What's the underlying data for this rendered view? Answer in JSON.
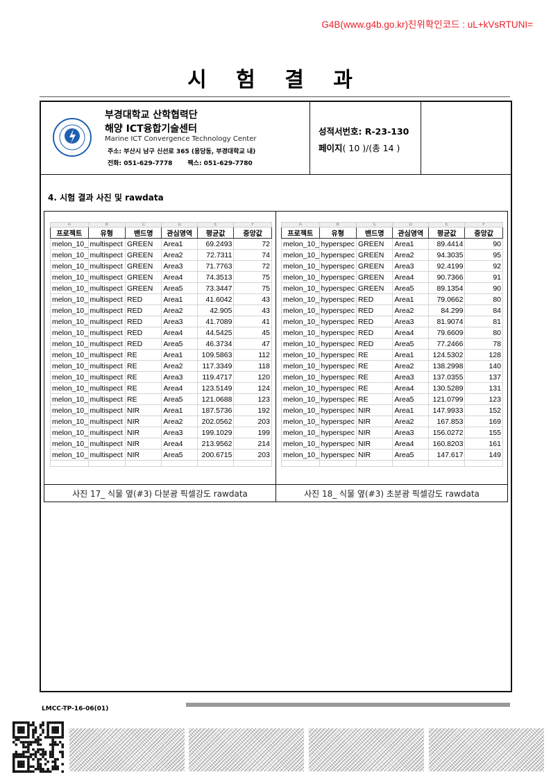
{
  "verify_code": "G4B(www.g4b.go.kr)진위확인코드 : uL+kVsRTUNI=",
  "title": "시 험 결 과",
  "org": {
    "name1": "부경대학교 산학협력단",
    "name2": "해양 ICT융합기술센터",
    "name_en": "Marine ICT Convergence Technology Center",
    "address": "주소: 부산시 남구 신선로 365 (용당동, 부경대학교 내)",
    "phone": "전화: 051-629-7778",
    "fax": "팩스:  051-629-7780",
    "logo_text": "PUKYONG NATIONAL UNIVERSITY 부경대학교"
  },
  "report": {
    "number_label": "성적서번호:",
    "number": "R-23-130",
    "page_label": "페이지",
    "page": "( 10 )/(총 14 )"
  },
  "section_title": "4. 시험 결과 사진 및 rawdata",
  "columns": [
    "프로젝트",
    "유형",
    "밴드명",
    "관심영역",
    "평균값",
    "중앙값"
  ],
  "col_letters": [
    "A",
    "B",
    "C",
    "D",
    "E",
    "F"
  ],
  "left_table": {
    "caption": "사진 17_ 식물 옆(#3) 다분광 픽셀강도 rawdata",
    "rows": [
      [
        "melon_10_",
        "multispect",
        "GREEN",
        "Area1",
        "69.2493",
        "72"
      ],
      [
        "melon_10_",
        "multispect",
        "GREEN",
        "Area2",
        "72.7311",
        "74"
      ],
      [
        "melon_10_",
        "multispect",
        "GREEN",
        "Area3",
        "71.7763",
        "72"
      ],
      [
        "melon_10_",
        "multispect",
        "GREEN",
        "Area4",
        "74.3513",
        "75"
      ],
      [
        "melon_10_",
        "multispect",
        "GREEN",
        "Area5",
        "73.3447",
        "75"
      ],
      [
        "melon_10_",
        "multispect",
        "RED",
        "Area1",
        "41.6042",
        "43"
      ],
      [
        "melon_10_",
        "multispect",
        "RED",
        "Area2",
        "42.905",
        "43"
      ],
      [
        "melon_10_",
        "multispect",
        "RED",
        "Area3",
        "41.7089",
        "41"
      ],
      [
        "melon_10_",
        "multispect",
        "RED",
        "Area4",
        "44.5425",
        "45"
      ],
      [
        "melon_10_",
        "multispect",
        "RED",
        "Area5",
        "46.3734",
        "47"
      ],
      [
        "melon_10_",
        "multispect",
        "RE",
        "Area1",
        "109.5863",
        "112"
      ],
      [
        "melon_10_",
        "multispect",
        "RE",
        "Area2",
        "117.3349",
        "118"
      ],
      [
        "melon_10_",
        "multispect",
        "RE",
        "Area3",
        "119.4717",
        "120"
      ],
      [
        "melon_10_",
        "multispect",
        "RE",
        "Area4",
        "123.5149",
        "124"
      ],
      [
        "melon_10_",
        "multispect",
        "RE",
        "Area5",
        "121.0688",
        "123"
      ],
      [
        "melon_10_",
        "multispect",
        "NIR",
        "Area1",
        "187.5736",
        "192"
      ],
      [
        "melon_10_",
        "multispect",
        "NIR",
        "Area2",
        "202.0562",
        "203"
      ],
      [
        "melon_10_",
        "multispect",
        "NIR",
        "Area3",
        "199.1029",
        "199"
      ],
      [
        "melon_10_",
        "multispect",
        "NIR",
        "Area4",
        "213.9562",
        "214"
      ],
      [
        "melon_10_",
        "multispect",
        "NIR",
        "Area5",
        "200.6715",
        "203"
      ]
    ]
  },
  "right_table": {
    "caption": "사진 18_ 식물 옆(#3) 초분광 픽셀강도 rawdata",
    "rows": [
      [
        "melon_10_",
        "hyperspec",
        "GREEN",
        "Area1",
        "89.4414",
        "90"
      ],
      [
        "melon_10_",
        "hyperspec",
        "GREEN",
        "Area2",
        "94.3035",
        "95"
      ],
      [
        "melon_10_",
        "hyperspec",
        "GREEN",
        "Area3",
        "92.4199",
        "92"
      ],
      [
        "melon_10_",
        "hyperspec",
        "GREEN",
        "Area4",
        "90.7366",
        "91"
      ],
      [
        "melon_10_",
        "hyperspec",
        "GREEN",
        "Area5",
        "89.1354",
        "90"
      ],
      [
        "melon_10_",
        "hyperspec",
        "RED",
        "Area1",
        "79.0662",
        "80"
      ],
      [
        "melon_10_",
        "hyperspec",
        "RED",
        "Area2",
        "84.299",
        "84"
      ],
      [
        "melon_10_",
        "hyperspec",
        "RED",
        "Area3",
        "81.9074",
        "81"
      ],
      [
        "melon_10_",
        "hyperspec",
        "RED",
        "Area4",
        "79.6609",
        "80"
      ],
      [
        "melon_10_",
        "hyperspec",
        "RED",
        "Area5",
        "77.2466",
        "78"
      ],
      [
        "melon_10_",
        "hyperspec",
        "RE",
        "Area1",
        "124.5302",
        "128"
      ],
      [
        "melon_10_",
        "hyperspec",
        "RE",
        "Area2",
        "138.2998",
        "140"
      ],
      [
        "melon_10_",
        "hyperspec",
        "RE",
        "Area3",
        "137.0355",
        "137"
      ],
      [
        "melon_10_",
        "hyperspec",
        "RE",
        "Area4",
        "130.5289",
        "131"
      ],
      [
        "melon_10_",
        "hyperspec",
        "RE",
        "Area5",
        "121.0799",
        "123"
      ],
      [
        "melon_10_",
        "hyperspec",
        "NIR",
        "Area1",
        "147.9933",
        "152"
      ],
      [
        "melon_10_",
        "hyperspec",
        "NIR",
        "Area2",
        "167.853",
        "169"
      ],
      [
        "melon_10_",
        "hyperspec",
        "NIR",
        "Area3",
        "156.0272",
        "155"
      ],
      [
        "melon_10_",
        "hyperspec",
        "NIR",
        "Area4",
        "160.8203",
        "161"
      ],
      [
        "melon_10_",
        "hyperspec",
        "NIR",
        "Area5",
        "147.617",
        "149"
      ]
    ]
  },
  "footer": {
    "form_code": "LMCC-TP-16-06(01)"
  },
  "colors": {
    "verify": "#e8202a",
    "logo_blue": "#1f5fb0"
  }
}
